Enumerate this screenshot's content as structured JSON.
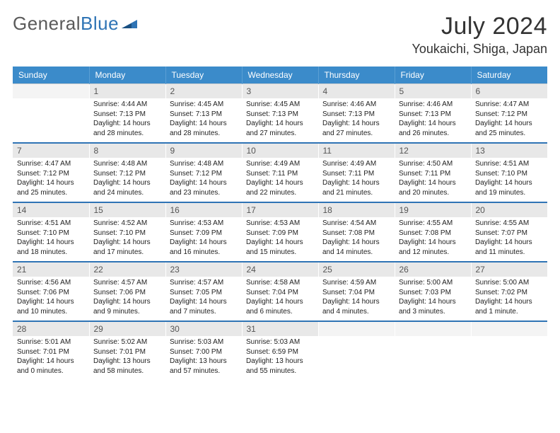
{
  "logo_text_1": "General",
  "logo_text_2": "Blue",
  "title": "July 2024",
  "location": "Youkaichi, Shiga, Japan",
  "colors": {
    "header_bg": "#3b8bca",
    "border": "#2f74b5",
    "daynum_bg": "#e8e8e8"
  },
  "weekdays": [
    "Sunday",
    "Monday",
    "Tuesday",
    "Wednesday",
    "Thursday",
    "Friday",
    "Saturday"
  ],
  "weeks": [
    {
      "nums": [
        "",
        "1",
        "2",
        "3",
        "4",
        "5",
        "6"
      ],
      "cells": [
        null,
        {
          "sr": "4:44 AM",
          "ss": "7:13 PM",
          "dl": "14 hours and 28 minutes."
        },
        {
          "sr": "4:45 AM",
          "ss": "7:13 PM",
          "dl": "14 hours and 28 minutes."
        },
        {
          "sr": "4:45 AM",
          "ss": "7:13 PM",
          "dl": "14 hours and 27 minutes."
        },
        {
          "sr": "4:46 AM",
          "ss": "7:13 PM",
          "dl": "14 hours and 27 minutes."
        },
        {
          "sr": "4:46 AM",
          "ss": "7:13 PM",
          "dl": "14 hours and 26 minutes."
        },
        {
          "sr": "4:47 AM",
          "ss": "7:12 PM",
          "dl": "14 hours and 25 minutes."
        }
      ]
    },
    {
      "nums": [
        "7",
        "8",
        "9",
        "10",
        "11",
        "12",
        "13"
      ],
      "cells": [
        {
          "sr": "4:47 AM",
          "ss": "7:12 PM",
          "dl": "14 hours and 25 minutes."
        },
        {
          "sr": "4:48 AM",
          "ss": "7:12 PM",
          "dl": "14 hours and 24 minutes."
        },
        {
          "sr": "4:48 AM",
          "ss": "7:12 PM",
          "dl": "14 hours and 23 minutes."
        },
        {
          "sr": "4:49 AM",
          "ss": "7:11 PM",
          "dl": "14 hours and 22 minutes."
        },
        {
          "sr": "4:49 AM",
          "ss": "7:11 PM",
          "dl": "14 hours and 21 minutes."
        },
        {
          "sr": "4:50 AM",
          "ss": "7:11 PM",
          "dl": "14 hours and 20 minutes."
        },
        {
          "sr": "4:51 AM",
          "ss": "7:10 PM",
          "dl": "14 hours and 19 minutes."
        }
      ]
    },
    {
      "nums": [
        "14",
        "15",
        "16",
        "17",
        "18",
        "19",
        "20"
      ],
      "cells": [
        {
          "sr": "4:51 AM",
          "ss": "7:10 PM",
          "dl": "14 hours and 18 minutes."
        },
        {
          "sr": "4:52 AM",
          "ss": "7:10 PM",
          "dl": "14 hours and 17 minutes."
        },
        {
          "sr": "4:53 AM",
          "ss": "7:09 PM",
          "dl": "14 hours and 16 minutes."
        },
        {
          "sr": "4:53 AM",
          "ss": "7:09 PM",
          "dl": "14 hours and 15 minutes."
        },
        {
          "sr": "4:54 AM",
          "ss": "7:08 PM",
          "dl": "14 hours and 14 minutes."
        },
        {
          "sr": "4:55 AM",
          "ss": "7:08 PM",
          "dl": "14 hours and 12 minutes."
        },
        {
          "sr": "4:55 AM",
          "ss": "7:07 PM",
          "dl": "14 hours and 11 minutes."
        }
      ]
    },
    {
      "nums": [
        "21",
        "22",
        "23",
        "24",
        "25",
        "26",
        "27"
      ],
      "cells": [
        {
          "sr": "4:56 AM",
          "ss": "7:06 PM",
          "dl": "14 hours and 10 minutes."
        },
        {
          "sr": "4:57 AM",
          "ss": "7:06 PM",
          "dl": "14 hours and 9 minutes."
        },
        {
          "sr": "4:57 AM",
          "ss": "7:05 PM",
          "dl": "14 hours and 7 minutes."
        },
        {
          "sr": "4:58 AM",
          "ss": "7:04 PM",
          "dl": "14 hours and 6 minutes."
        },
        {
          "sr": "4:59 AM",
          "ss": "7:04 PM",
          "dl": "14 hours and 4 minutes."
        },
        {
          "sr": "5:00 AM",
          "ss": "7:03 PM",
          "dl": "14 hours and 3 minutes."
        },
        {
          "sr": "5:00 AM",
          "ss": "7:02 PM",
          "dl": "14 hours and 1 minute."
        }
      ]
    },
    {
      "nums": [
        "28",
        "29",
        "30",
        "31",
        "",
        "",
        ""
      ],
      "cells": [
        {
          "sr": "5:01 AM",
          "ss": "7:01 PM",
          "dl": "14 hours and 0 minutes."
        },
        {
          "sr": "5:02 AM",
          "ss": "7:01 PM",
          "dl": "13 hours and 58 minutes."
        },
        {
          "sr": "5:03 AM",
          "ss": "7:00 PM",
          "dl": "13 hours and 57 minutes."
        },
        {
          "sr": "5:03 AM",
          "ss": "6:59 PM",
          "dl": "13 hours and 55 minutes."
        },
        null,
        null,
        null
      ]
    }
  ],
  "labels": {
    "sunrise": "Sunrise:",
    "sunset": "Sunset:",
    "daylight": "Daylight:"
  }
}
